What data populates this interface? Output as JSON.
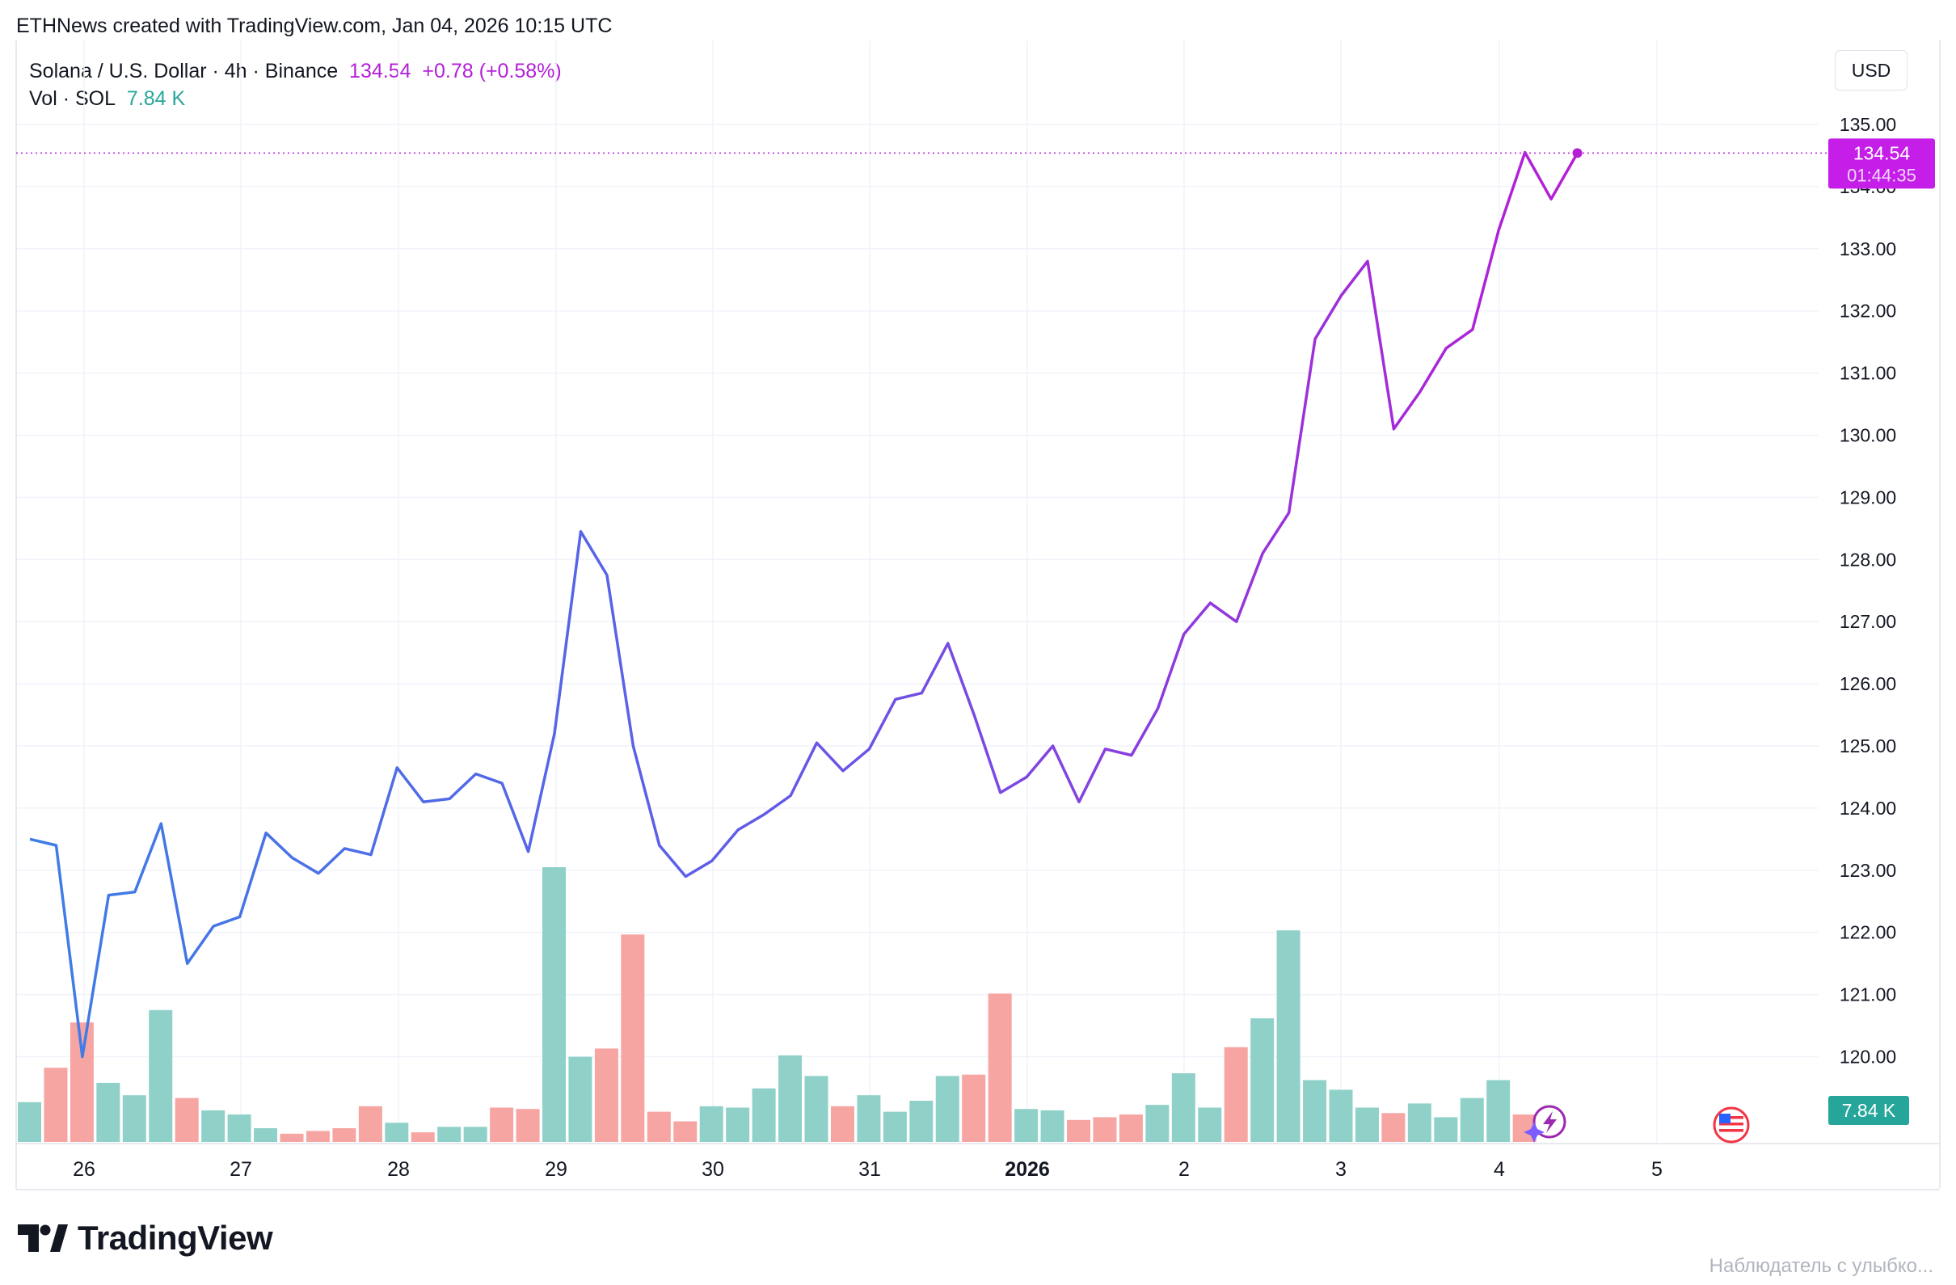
{
  "header": {
    "credit": "ETHNews created with TradingView.com, Jan 04, 2026 10:15 UTC"
  },
  "legend": {
    "symbol": "Solana / U.S. Dollar · 4h · Binance",
    "last": "134.54",
    "change": "+0.78 (+0.58%)",
    "vol_label": "Vol · SOL",
    "vol_value": "7.84 K"
  },
  "currency_button": "USD",
  "price_badge": {
    "price": "134.54",
    "countdown": "01:44:35"
  },
  "volume_badge": "7.84 K",
  "brand": {
    "name": "TradingView"
  },
  "watermark": "Наблюдатель с улыбко...",
  "colors": {
    "line_start": "#3d7ee6",
    "line_end": "#b41fd6",
    "volume_up": "#8fd1c8",
    "volume_down": "#f6a5a2",
    "price_badge": "#c41ee8",
    "volume_badge": "#26a69a",
    "grid": "#f0f3fa",
    "axis_text": "#131722"
  },
  "chart_data": {
    "type": "line",
    "title": "Solana / U.S. Dollar · 4h · Binance",
    "xlabel": "",
    "ylabel": "",
    "ylim": [
      119.0,
      135.5
    ],
    "grid": true,
    "x_ticks": [
      "26",
      "27",
      "28",
      "29",
      "30",
      "31",
      "2026",
      "2",
      "3",
      "4",
      "5"
    ],
    "y_ticks": [
      "120.00",
      "121.00",
      "122.00",
      "123.00",
      "124.00",
      "125.00",
      "126.00",
      "127.00",
      "128.00",
      "129.00",
      "130.00",
      "131.00",
      "132.00",
      "133.00",
      "134.00",
      "135.00"
    ],
    "series": [
      {
        "name": "",
        "values": [
          123.5,
          123.4,
          120.0,
          122.6,
          122.65,
          123.75,
          121.5,
          122.1,
          122.25,
          123.6,
          123.2,
          122.95,
          123.35,
          123.25,
          124.65,
          124.1,
          124.15,
          124.55,
          124.4,
          123.3,
          125.2,
          128.45,
          127.75,
          125.0,
          123.4,
          122.9,
          123.15,
          123.65,
          123.9,
          124.2,
          125.05,
          124.6,
          124.95,
          125.75,
          125.85,
          126.65,
          125.5,
          124.25,
          124.5,
          125.0,
          124.1,
          124.95,
          124.85,
          125.6,
          126.8,
          127.3,
          127.0,
          128.1,
          128.75,
          131.55,
          132.25,
          132.8,
          130.1,
          130.7,
          131.4,
          131.7,
          133.3,
          134.55,
          133.8,
          134.54
        ]
      },
      {
        "name": "Vol · SOL",
        "values": [
          14.5,
          27.0,
          43.5,
          21.5,
          17.0,
          48.0,
          16.0,
          11.5,
          10.0,
          5.0,
          3.0,
          4.0,
          5.0,
          13.0,
          7.0,
          3.5,
          5.5,
          5.5,
          12.5,
          12.0,
          100.0,
          31.0,
          34.0,
          75.5,
          11.0,
          7.5,
          13.0,
          12.5,
          19.5,
          31.5,
          24.0,
          13.0,
          17.0,
          11.0,
          15.0,
          24.0,
          24.5,
          54.0,
          12.0,
          11.5,
          8.0,
          9.0,
          10.0,
          13.5,
          25.0,
          12.5,
          34.5,
          45.0,
          77.0,
          22.5,
          19.0,
          12.5,
          10.5,
          14.0,
          9.0,
          16.0,
          22.5,
          10.0,
          0.0,
          0.0
        ],
        "direction": [
          "up",
          "down",
          "down",
          "up",
          "up",
          "up",
          "down",
          "up",
          "up",
          "up",
          "down",
          "down",
          "down",
          "down",
          "up",
          "down",
          "up",
          "up",
          "down",
          "down",
          "up",
          "up",
          "down",
          "down",
          "down",
          "down",
          "up",
          "up",
          "up",
          "up",
          "up",
          "down",
          "up",
          "up",
          "up",
          "up",
          "down",
          "down",
          "up",
          "up",
          "down",
          "down",
          "down",
          "up",
          "up",
          "up",
          "down",
          "up",
          "up",
          "up",
          "up",
          "up",
          "down",
          "up",
          "up",
          "up",
          "up",
          "down",
          "down",
          "up"
        ]
      }
    ]
  }
}
